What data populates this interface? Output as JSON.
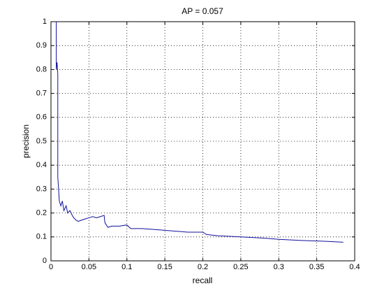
{
  "chart_data": {
    "type": "line",
    "title": "AP = 0.057",
    "x_label": "recall",
    "y_label": "precision",
    "x": [
      0.007,
      0.007,
      0.008,
      0.009,
      0.009,
      0.01,
      0.011,
      0.013,
      0.015,
      0.017,
      0.02,
      0.022,
      0.025,
      0.028,
      0.03,
      0.033,
      0.036,
      0.04,
      0.045,
      0.05,
      0.055,
      0.06,
      0.065,
      0.07,
      0.071,
      0.075,
      0.08,
      0.09,
      0.1,
      0.105,
      0.12,
      0.14,
      0.16,
      0.18,
      0.2,
      0.205,
      0.22,
      0.25,
      0.28,
      0.3,
      0.33,
      0.36,
      0.385
    ],
    "series": [
      {
        "color": "#10109c",
        "values": [
          1.0,
          0.8,
          0.83,
          0.78,
          0.35,
          0.3,
          0.25,
          0.23,
          0.25,
          0.21,
          0.23,
          0.2,
          0.21,
          0.19,
          0.18,
          0.17,
          0.165,
          0.17,
          0.175,
          0.18,
          0.185,
          0.18,
          0.185,
          0.19,
          0.16,
          0.14,
          0.145,
          0.145,
          0.15,
          0.135,
          0.135,
          0.13,
          0.125,
          0.12,
          0.12,
          0.11,
          0.105,
          0.1,
          0.095,
          0.09,
          0.085,
          0.082,
          0.078
        ]
      }
    ],
    "xlim": [
      0,
      0.4
    ],
    "xticks": [
      0,
      0.05,
      0.1,
      0.15,
      0.2,
      0.25,
      0.3,
      0.35,
      0.4
    ],
    "ylim": [
      0,
      1
    ],
    "yticks": [
      0,
      0.1,
      0.2,
      0.3,
      0.4,
      0.5,
      0.6,
      0.7,
      0.8,
      0.9,
      1
    ],
    "grid": true
  }
}
